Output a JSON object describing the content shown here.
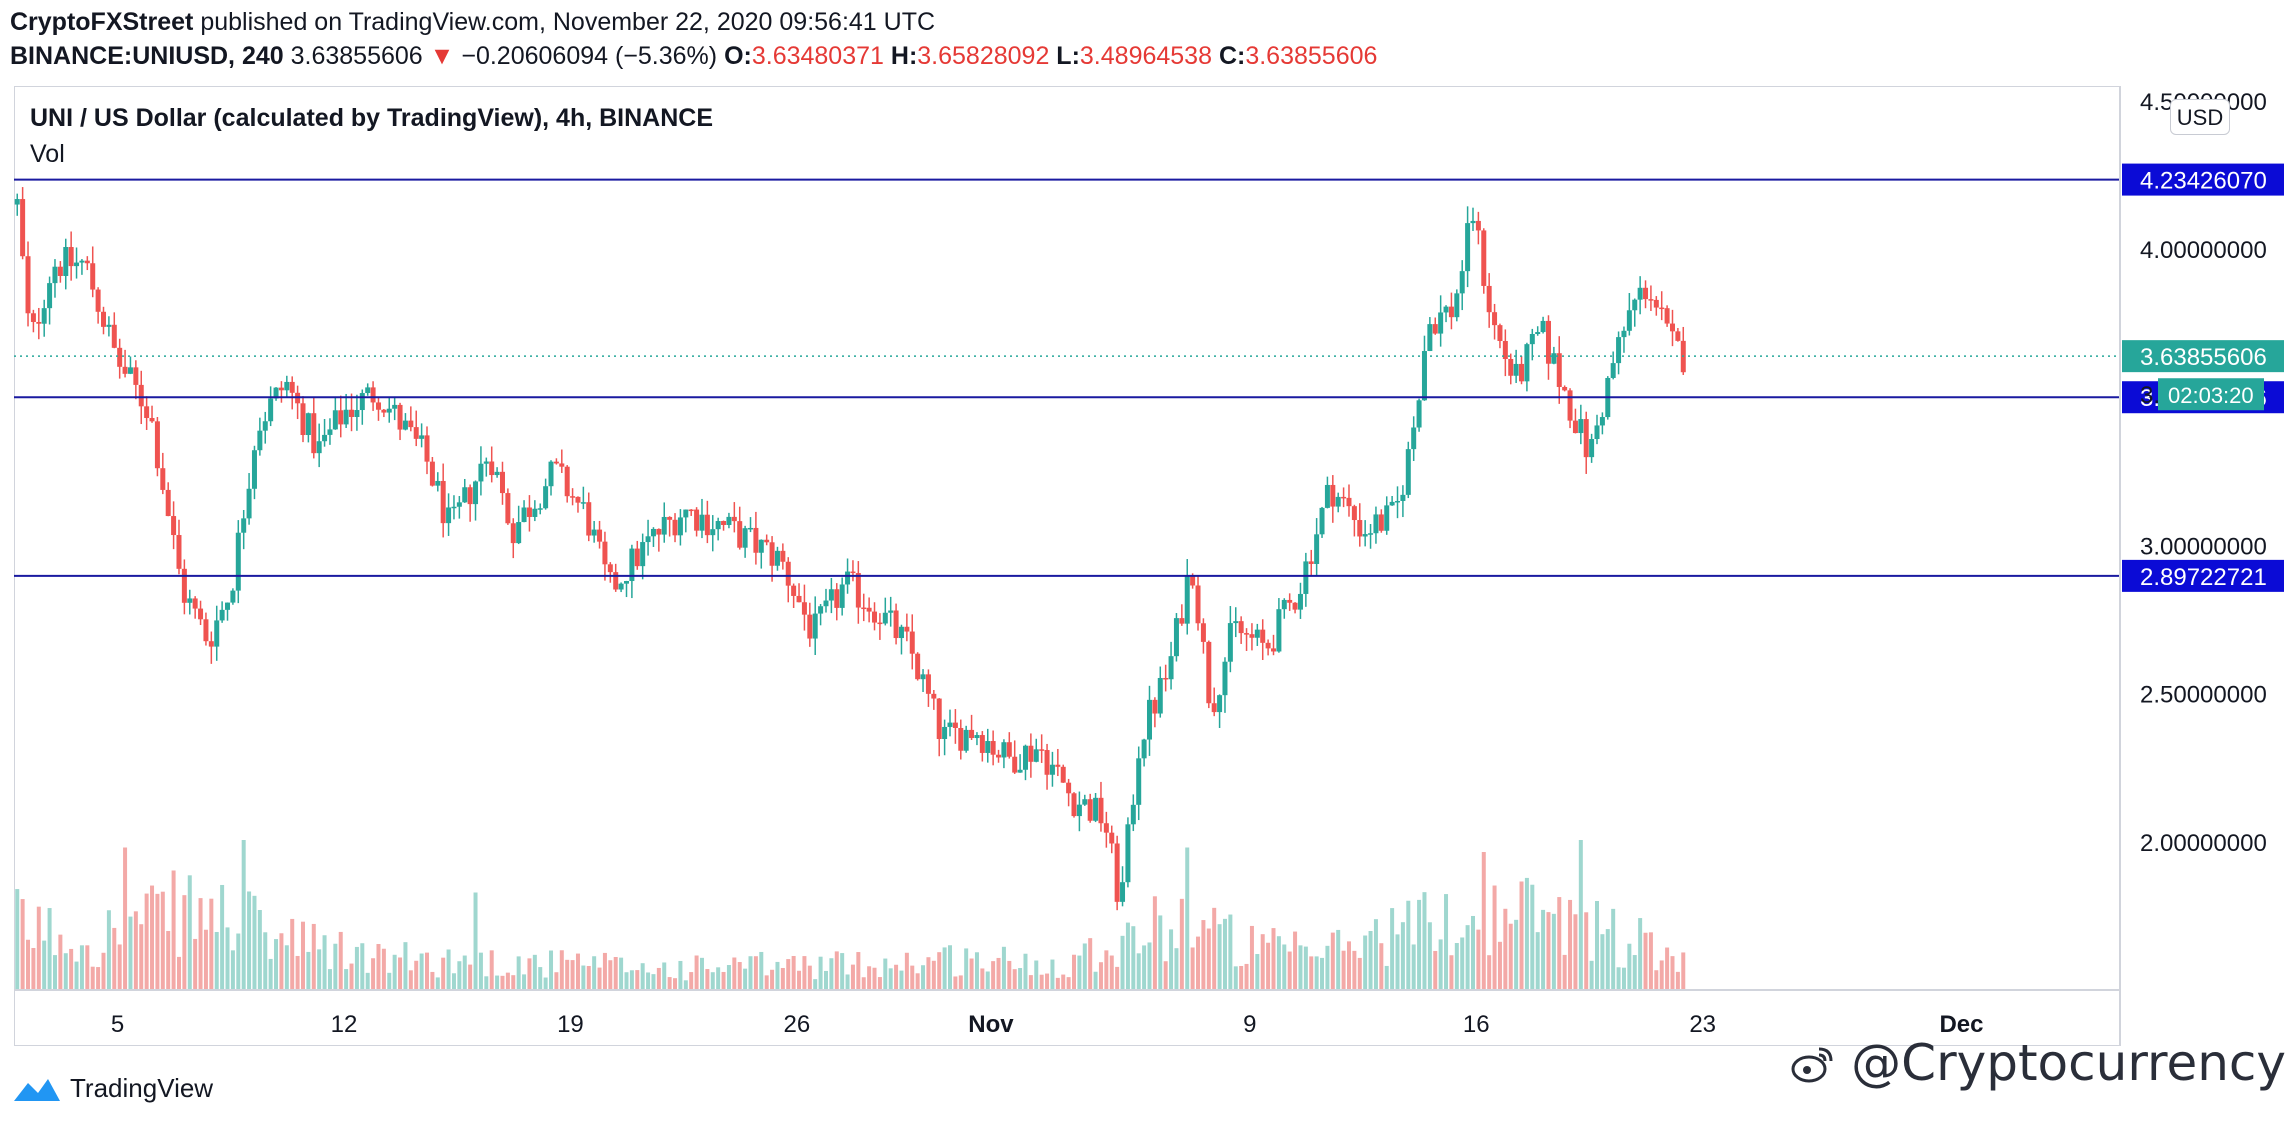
{
  "header": {
    "line1": {
      "author": "CryptoFXStreet",
      "published": " published on TradingView.com, November 22, 2020 09:56:41 UTC"
    },
    "line2": {
      "symbol": "BINANCE:UNIUSD, 240",
      "last": " 3.63855606",
      "arrow": "▼",
      "change": " −0.20606094 (−5.36%)",
      "o_label": " O:",
      "o_value": "3.63480371",
      "h_label": " H:",
      "h_value": "3.65828092",
      "l_label": " L:",
      "l_value": "3.48964538",
      "c_label": " C:",
      "c_value": "3.63855606"
    }
  },
  "chart_title": "UNI / US Dollar (calculated by TradingView), 4h, BINANCE",
  "volume_label": "Vol",
  "currency_button": "USD",
  "watermark": {
    "brand": "TradingView",
    "handle": "@Cryptocurrency"
  },
  "colors": {
    "up": "#26a69a",
    "down": "#ef5350",
    "level_line": "#1a1aa0",
    "level_tag": "#0b0bd6",
    "current_tag": "#26a69a"
  },
  "chart_data": {
    "type": "candlestick",
    "title": "UNI / US Dollar (calculated by TradingView), 4h, BINANCE",
    "ylim": [
      1.5,
      4.55
    ],
    "y_ticks": [
      "4.50000000",
      "4.00000000",
      "3.00000000",
      "2.50000000",
      "2.00000000"
    ],
    "x_ticks": [
      {
        "label": "5",
        "day": 5
      },
      {
        "label": "12",
        "day": 12
      },
      {
        "label": "19",
        "day": 19
      },
      {
        "label": "26",
        "day": 26
      },
      {
        "label": "Nov",
        "day": 32
      },
      {
        "label": "9",
        "day": 40
      },
      {
        "label": "16",
        "day": 47
      },
      {
        "label": "23",
        "day": 54
      },
      {
        "label": "Dec",
        "day": 62
      }
    ],
    "x_domain_days": [
      1.8,
      66.9
    ],
    "levels": [
      {
        "label": "4.23426070",
        "value": 4.2342607
      },
      {
        "label": "3.49995516",
        "value": 3.49995516
      },
      {
        "label": "2.89722721",
        "value": 2.89722721
      }
    ],
    "current_price": {
      "label": "3.63855606",
      "value": 3.63855606
    },
    "countdown": {
      "label": "02:03:20",
      "partial_price": "3."
    },
    "close_path": [
      {
        "day": 1.9,
        "price": 4.15
      },
      {
        "day": 2.3,
        "price": 3.68
      },
      {
        "day": 3.0,
        "price": 3.95
      },
      {
        "day": 4.0,
        "price": 3.95
      },
      {
        "day": 5.0,
        "price": 3.62
      },
      {
        "day": 6.0,
        "price": 3.45
      },
      {
        "day": 7.0,
        "price": 2.85
      },
      {
        "day": 7.8,
        "price": 2.68
      },
      {
        "day": 8.5,
        "price": 2.85
      },
      {
        "day": 9.3,
        "price": 3.4
      },
      {
        "day": 10.2,
        "price": 3.55
      },
      {
        "day": 11.2,
        "price": 3.32
      },
      {
        "day": 12.0,
        "price": 3.45
      },
      {
        "day": 13.0,
        "price": 3.52
      },
      {
        "day": 14.5,
        "price": 3.3
      },
      {
        "day": 15.3,
        "price": 3.05
      },
      {
        "day": 16.5,
        "price": 3.32
      },
      {
        "day": 17.2,
        "price": 3.05
      },
      {
        "day": 18.5,
        "price": 3.25
      },
      {
        "day": 19.5,
        "price": 3.1
      },
      {
        "day": 20.2,
        "price": 2.85
      },
      {
        "day": 21.5,
        "price": 3.02
      },
      {
        "day": 22.5,
        "price": 3.12
      },
      {
        "day": 24.0,
        "price": 3.05
      },
      {
        "day": 25.5,
        "price": 2.95
      },
      {
        "day": 26.5,
        "price": 2.7
      },
      {
        "day": 27.5,
        "price": 2.87
      },
      {
        "day": 28.5,
        "price": 2.78
      },
      {
        "day": 29.5,
        "price": 2.65
      },
      {
        "day": 30.5,
        "price": 2.35
      },
      {
        "day": 31.5,
        "price": 2.38
      },
      {
        "day": 32.5,
        "price": 2.28
      },
      {
        "day": 33.5,
        "price": 2.32
      },
      {
        "day": 34.5,
        "price": 2.15
      },
      {
        "day": 35.5,
        "price": 2.08
      },
      {
        "day": 36.0,
        "price": 1.78
      },
      {
        "day": 36.6,
        "price": 2.35
      },
      {
        "day": 37.5,
        "price": 2.58
      },
      {
        "day": 38.2,
        "price": 2.95
      },
      {
        "day": 38.8,
        "price": 2.45
      },
      {
        "day": 39.5,
        "price": 2.72
      },
      {
        "day": 40.5,
        "price": 2.65
      },
      {
        "day": 41.5,
        "price": 2.85
      },
      {
        "day": 42.5,
        "price": 3.2
      },
      {
        "day": 43.5,
        "price": 3.05
      },
      {
        "day": 44.5,
        "price": 3.1
      },
      {
        "day": 45.0,
        "price": 3.35
      },
      {
        "day": 45.5,
        "price": 3.75
      },
      {
        "day": 46.3,
        "price": 3.8
      },
      {
        "day": 46.9,
        "price": 4.12
      },
      {
        "day": 47.5,
        "price": 3.75
      },
      {
        "day": 48.2,
        "price": 3.55
      },
      {
        "day": 49.0,
        "price": 3.72
      },
      {
        "day": 49.8,
        "price": 3.5
      },
      {
        "day": 50.5,
        "price": 3.3
      },
      {
        "day": 51.2,
        "price": 3.6
      },
      {
        "day": 51.8,
        "price": 3.8
      },
      {
        "day": 52.3,
        "price": 3.88
      },
      {
        "day": 53.0,
        "price": 3.68
      },
      {
        "day": 53.4,
        "price": 3.64
      }
    ],
    "volume_path": [
      {
        "day": 1.9,
        "volume": 0.45
      },
      {
        "day": 4.0,
        "volume": 0.35
      },
      {
        "day": 7.0,
        "volume": 0.55
      },
      {
        "day": 8.5,
        "volume": 0.5
      },
      {
        "day": 10.0,
        "volume": 0.35
      },
      {
        "day": 13.0,
        "volume": 0.22
      },
      {
        "day": 16.0,
        "volume": 0.2
      },
      {
        "day": 19.0,
        "volume": 0.18
      },
      {
        "day": 22.0,
        "volume": 0.15
      },
      {
        "day": 25.0,
        "volume": 0.17
      },
      {
        "day": 28.0,
        "volume": 0.18
      },
      {
        "day": 31.0,
        "volume": 0.22
      },
      {
        "day": 34.0,
        "volume": 0.18
      },
      {
        "day": 36.0,
        "volume": 0.35
      },
      {
        "day": 38.0,
        "volume": 0.5
      },
      {
        "day": 40.0,
        "volume": 0.3
      },
      {
        "day": 42.0,
        "volume": 0.25
      },
      {
        "day": 45.0,
        "volume": 0.45
      },
      {
        "day": 47.0,
        "volume": 0.5
      },
      {
        "day": 49.0,
        "volume": 0.55
      },
      {
        "day": 51.0,
        "volume": 0.4
      },
      {
        "day": 53.4,
        "volume": 0.25
      }
    ],
    "volume_spikes": [
      {
        "day": 5.2,
        "volume": 0.95
      },
      {
        "day": 8.9,
        "volume": 1.0
      },
      {
        "day": 16.0,
        "volume": 0.65
      },
      {
        "day": 38.1,
        "volume": 0.95
      },
      {
        "day": 47.2,
        "volume": 0.92
      },
      {
        "day": 50.3,
        "volume": 1.0
      }
    ]
  }
}
